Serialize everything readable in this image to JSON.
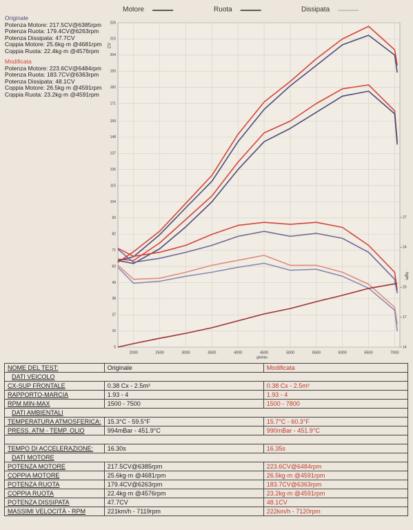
{
  "chart_data": {
    "type": "line",
    "legend": [
      "Motore",
      "Ruota",
      "Dissipata"
    ],
    "y_label": "CV",
    "y2_label": "kgm",
    "x_label": "giri/min",
    "x": [
      1700,
      2000,
      2500,
      3000,
      3500,
      4000,
      4500,
      5000,
      5500,
      6000,
      6500,
      7000,
      7050
    ],
    "xlim": [
      1700,
      7100
    ],
    "xticks": [
      2000,
      2500,
      3000,
      3500,
      4000,
      4500,
      5000,
      5500,
      6000,
      6500,
      7000
    ],
    "ylim": [
      5,
      226
    ],
    "yticks": [
      5,
      16,
      27,
      38,
      49,
      60,
      71,
      82,
      93,
      104,
      115,
      126,
      137,
      148,
      159,
      171,
      182,
      193,
      204,
      215,
      226
    ],
    "y2lim": [
      14,
      46.5
    ],
    "y2ticks": [
      14,
      17,
      20,
      24,
      27
    ],
    "grid": true,
    "series": [
      {
        "color": "#d2443a",
        "values": [
          62.8,
          70,
          84,
          103,
          122,
          150,
          172,
          186,
          201.5,
          215,
          223.6,
          207.6,
          197
        ]
      },
      {
        "color": "#4b4b78",
        "values": [
          63.8,
          66.6,
          81.6,
          100,
          118,
          145,
          167,
          183,
          197,
          211,
          217.5,
          204,
          192
        ]
      },
      {
        "color": "#d2443a",
        "values": [
          65,
          64,
          76,
          92,
          108,
          131,
          151,
          159,
          171,
          181,
          183.7,
          166,
          145
        ]
      },
      {
        "color": "#4b4b78",
        "values": [
          64,
          62,
          72,
          87,
          104,
          126,
          145,
          154,
          165,
          176,
          179.4,
          164,
          143
        ]
      },
      {
        "color": "#d2443a",
        "axis": "y2",
        "values": [
          23.9,
          23.1,
          23.5,
          24.2,
          25.3,
          26.2,
          26.5,
          26.3,
          26.5,
          26.0,
          24.2,
          21.5,
          19.7
        ]
      },
      {
        "color": "#6a6a98",
        "axis": "y2",
        "values": [
          23.8,
          22.5,
          22.9,
          23.5,
          24.2,
          25.1,
          25.6,
          25.1,
          25.4,
          24.9,
          23.5,
          20.8,
          19.4
        ]
      },
      {
        "color": "#e08a80",
        "axis": "y2",
        "values": [
          22.2,
          20.8,
          20.9,
          21.5,
          22.2,
          22.7,
          23.2,
          22.2,
          22.2,
          21.5,
          20.3,
          18.0,
          16.3
        ]
      },
      {
        "color": "#8a8ab0",
        "axis": "y2",
        "values": [
          22.0,
          20.4,
          20.6,
          21.1,
          21.5,
          22.0,
          22.4,
          21.7,
          21.8,
          21.1,
          19.9,
          17.7,
          15.6
        ]
      },
      {
        "color": "#9a3030",
        "values": [
          5,
          7.4,
          11,
          14.4,
          18.2,
          22.9,
          27.6,
          31.3,
          36,
          40.3,
          45,
          48.1,
          48.1
        ]
      }
    ]
  },
  "summary": [
    {
      "title": "Originale",
      "color": "#4b4b78",
      "lines": [
        "Potenza Motore: 217.5CV@6385rpm",
        "Potenza Ruota: 179.4CV@6263rpm",
        "Potenza Dissipata: 47.7CV",
        "Coppia Motore: 25.6kg·m @4681rpm",
        "Coppia Ruota: 22.4kg·m @4576rpm"
      ]
    },
    {
      "title": "Modificata",
      "color": "#d2443a",
      "lines": [
        "Potenza Motore: 223.6CV@6484rpm",
        "Potenza Ruota: 183.7CV@6363rpm",
        "Potenza Dissipata: 48.1CV",
        "Coppia Motore: 26.5kg·m @4591rpm",
        "Coppia Ruota: 23.2kg·m @4591rpm"
      ]
    }
  ],
  "table": {
    "rows": [
      [
        "NOME DEL TEST:",
        "Originale",
        "Modificata"
      ],
      [
        "DATI VEICOLO"
      ],
      [
        "CX-SUP FRONTALE",
        "0.38 Cx - 2.5m²",
        "0.38 Cx - 2.5m²"
      ],
      [
        "RAPPORTO-MARCIA",
        "1.93 - 4",
        "1.93 - 4"
      ],
      [
        "RPM MIN-MAX",
        "1500 - 7500",
        "1500 - 7800"
      ],
      [
        "DATI AMBIENTALI"
      ],
      [
        "TEMPERATURA ATMOSFERICA:",
        "15.3°C - 59.5°F",
        "15.7°C - 60.3°F"
      ],
      [
        "PRESS. ATM - TEMP. OLIO",
        "994mBar - 451.9°C",
        "990mBar - 451.9°C"
      ],
      [
        "TEMPO DI ACCELERAZIONE:",
        "16.30s",
        "16.35s"
      ],
      [
        "DATI MOTORE"
      ],
      [
        "POTENZA MOTORE",
        "217.5CV@6385rpm",
        "223.6CV@6484rpm"
      ],
      [
        "COPPIA MOTORE",
        "25.6kg·m @4681rpm",
        "26.5kg·m @4591rpm"
      ],
      [
        "POTENZA RUOTA",
        "179.4CV@6263rpm",
        "183.7CV@6363rpm"
      ],
      [
        "COPPIA RUOTA",
        "22.4kg·m @4576rpm",
        "23.2kg·m @4591rpm"
      ],
      [
        "POTENZA DISSIPATA",
        "47.7CV",
        "48.1CV"
      ],
      [
        "MASSIMI VELOCITÀ - RPM",
        "221km/h - 7119rpm",
        "222km/h - 7120rpm"
      ]
    ]
  }
}
